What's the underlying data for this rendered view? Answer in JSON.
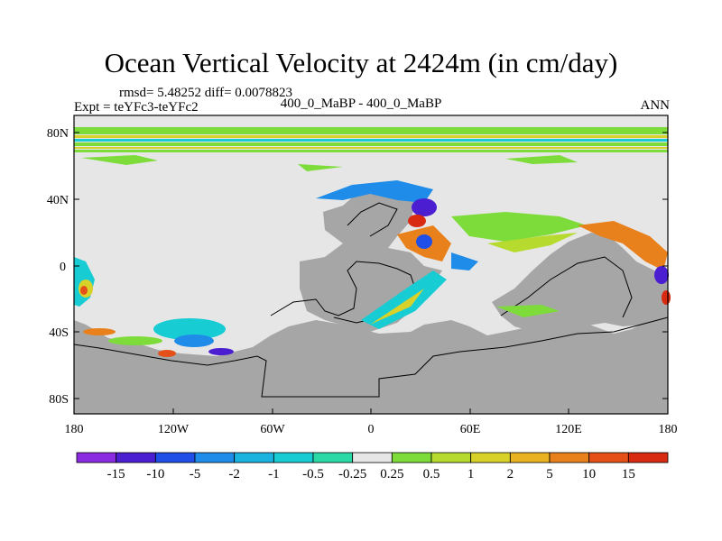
{
  "title": "Ocean Vertical Velocity at 2424m (in cm/day)",
  "stats": "rmsd= 5.48252  diff= 0.0078823",
  "experiment": "Expt = teYFc3-teYFc2",
  "comparison": "400_0_MaBP - 400_0_MaBP",
  "period": "ANN",
  "lat_ticks": [
    "80N",
    "40N",
    "0",
    "40S",
    "80S"
  ],
  "lon_ticks": [
    "180",
    "120W",
    "60W",
    "0",
    "60E",
    "120E",
    "180"
  ],
  "colorbar": {
    "labels": [
      "-15",
      "-10",
      "-5",
      "-2",
      "-1",
      "-0.5",
      "-0.25",
      "0.25",
      "0.5",
      "1",
      "2",
      "5",
      "10",
      "15"
    ],
    "colors": [
      "#8a2be2",
      "#4b1fd1",
      "#1f4fe6",
      "#1e8ce8",
      "#1ab3e0",
      "#18ccd4",
      "#2ad9a6",
      "#e6e6e6",
      "#7ddc3a",
      "#b6db2e",
      "#d8d12a",
      "#e8b220",
      "#e8801c",
      "#e45018",
      "#d82a10"
    ]
  },
  "colors": {
    "land": "#a6a6a6",
    "ocean_neutral": "#e6e6e6",
    "green": "#7ddc3a",
    "cyan": "#18ccd4",
    "blue": "#1f4fe6",
    "yellow": "#d8d12a",
    "orange": "#e8801c",
    "red": "#d82a10"
  }
}
